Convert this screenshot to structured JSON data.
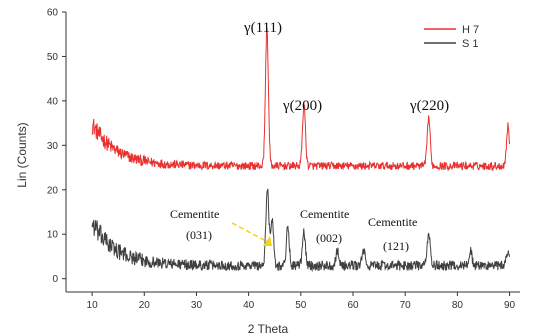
{
  "chart_data": {
    "type": "line",
    "xlabel": "2 Theta",
    "ylabel": "Lin (Counts)",
    "xlim": [
      5,
      92
    ],
    "ylim": [
      -3,
      60
    ],
    "x_ticks": [
      10,
      20,
      30,
      40,
      50,
      60,
      70,
      80,
      90
    ],
    "y_ticks": [
      0,
      10,
      20,
      30,
      40,
      50,
      60
    ],
    "legend_position": "top-right",
    "series": [
      {
        "name": "H 7",
        "color": "#e8312f",
        "baseline": 25,
        "noise": 1.8,
        "start_bump": 9,
        "peaks": [
          {
            "x": 43.5,
            "y": 56
          },
          {
            "x": 50.6,
            "y": 39
          },
          {
            "x": 74.5,
            "y": 36
          },
          {
            "x": 89.7,
            "y": 34
          }
        ]
      },
      {
        "name": "S 1",
        "color": "#404040",
        "baseline": 2.5,
        "noise": 2.2,
        "start_bump": 9,
        "peaks": [
          {
            "x": 43.6,
            "y": 20
          },
          {
            "x": 44.5,
            "y": 13
          },
          {
            "x": 47.5,
            "y": 11
          },
          {
            "x": 50.6,
            "y": 10
          },
          {
            "x": 57.0,
            "y": 6
          },
          {
            "x": 62.0,
            "y": 6
          },
          {
            "x": 74.5,
            "y": 10
          },
          {
            "x": 82.5,
            "y": 6
          },
          {
            "x": 89.7,
            "y": 6
          }
        ]
      }
    ],
    "annotations": {
      "g111": "γ(111)",
      "g200": "γ(200)",
      "g220": "γ(220)",
      "cem031_a": "Cementite",
      "cem031_b": "(031)",
      "cem002_a": "Cementite",
      "cem002_b": "(002)",
      "cem121_a": "Cementite",
      "cem121_b": "(121)"
    },
    "arrow_color": "#f2d21b"
  }
}
